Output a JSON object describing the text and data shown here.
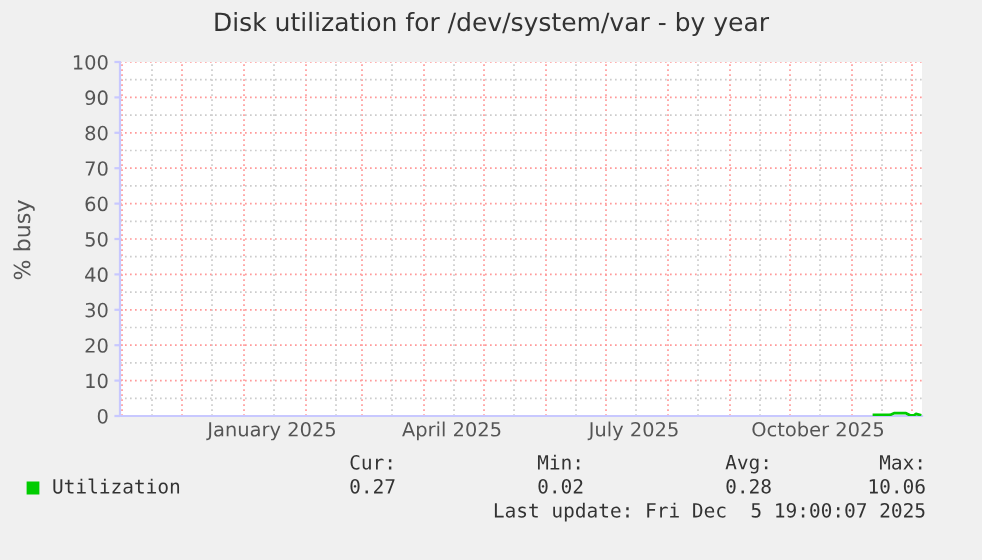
{
  "chart_data": {
    "type": "line",
    "title": "Disk utilization for /dev/system/var - by year",
    "ylabel": "% busy",
    "x": [
      "2025-11-12",
      "2025-11-20",
      "2025-11-22",
      "2025-11-28",
      "2025-11-30",
      "2025-12-02",
      "2025-12-03",
      "2025-12-05"
    ],
    "series": [
      {
        "name": "Utilization",
        "color": "#00cc00",
        "values": [
          0.3,
          0.3,
          0.8,
          0.8,
          0.2,
          0.2,
          0.6,
          0.3
        ]
      }
    ],
    "xlim": [
      "2024-10-31",
      "2025-12-06"
    ],
    "xticks": [
      {
        "value": "2025-01-15",
        "label": "January 2025"
      },
      {
        "value": "2025-04-15",
        "label": "April 2025"
      },
      {
        "value": "2025-07-15",
        "label": "July 2025"
      },
      {
        "value": "2025-10-15",
        "label": "October 2025"
      }
    ],
    "ylim": [
      0,
      100
    ],
    "yticks": [
      0,
      10,
      20,
      30,
      40,
      50,
      60,
      70,
      80,
      90,
      100
    ],
    "grid": true,
    "legend": "bottom",
    "marker": "none",
    "line_style": "solid",
    "annotations": [
      "Cur:",
      "Min:",
      "Avg:",
      "Max:",
      "0.27",
      "0.02",
      "0.28",
      "10.06",
      "Last update: Fri Dec  5 19:00:07 2025"
    ]
  }
}
